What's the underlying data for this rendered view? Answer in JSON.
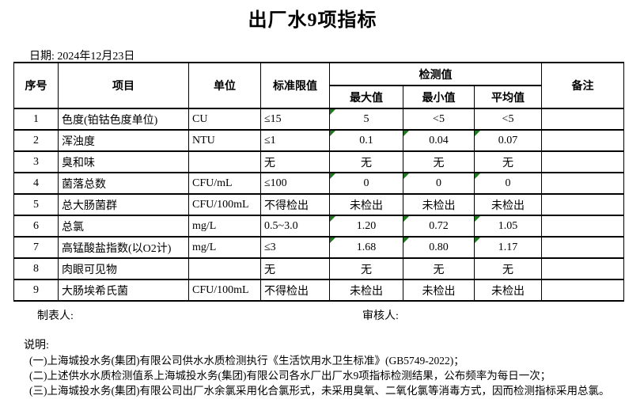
{
  "title": "出厂水9项指标",
  "date_label": "日期: 2024年12月23日",
  "table": {
    "headers": {
      "no": "序号",
      "item": "项目",
      "unit": "单位",
      "limit": "标准限值",
      "detection": "检测值",
      "max": "最大值",
      "min": "最小值",
      "avg": "平均值",
      "remark": "备注"
    },
    "rows": [
      {
        "no": "1",
        "item": "色度(铂钴色度单位)",
        "unit": "CU",
        "limit": "≤15",
        "max": "5",
        "min": "<5",
        "avg": "<5",
        "remark": "",
        "flagged": [
          "max"
        ]
      },
      {
        "no": "2",
        "item": "浑浊度",
        "unit": "NTU",
        "limit": "≤1",
        "max": "0.1",
        "min": "0.04",
        "avg": "0.07",
        "remark": "",
        "flagged": [
          "max",
          "min",
          "avg"
        ]
      },
      {
        "no": "3",
        "item": "臭和味",
        "unit": "",
        "limit": "无",
        "max": "无",
        "min": "无",
        "avg": "无",
        "remark": "",
        "flagged": []
      },
      {
        "no": "4",
        "item": "菌落总数",
        "unit": "CFU/mL",
        "limit": "≤100",
        "max": "0",
        "min": "0",
        "avg": "0",
        "remark": "",
        "flagged": [
          "max",
          "min",
          "avg"
        ]
      },
      {
        "no": "5",
        "item": "总大肠菌群",
        "unit": "CFU/100mL",
        "limit": "不得检出",
        "max": "未检出",
        "min": "未检出",
        "avg": "未检出",
        "remark": "",
        "flagged": []
      },
      {
        "no": "6",
        "item": "总氯",
        "unit": "mg/L",
        "limit": "0.5~3.0",
        "max": "1.20",
        "min": "0.72",
        "avg": "1.05",
        "remark": "",
        "flagged": [
          "max",
          "min",
          "avg"
        ]
      },
      {
        "no": "7",
        "item": "高锰酸盐指数(以O2计)",
        "unit": "mg/L",
        "limit": "≤3",
        "max": "1.68",
        "min": "0.80",
        "avg": "1.17",
        "remark": "",
        "flagged": [
          "max",
          "min",
          "avg"
        ]
      },
      {
        "no": "8",
        "item": "肉眼可见物",
        "unit": "",
        "limit": "无",
        "max": "无",
        "min": "无",
        "avg": "无",
        "remark": "",
        "flagged": []
      },
      {
        "no": "9",
        "item": "大肠埃希氏菌",
        "unit": "CFU/100mL",
        "limit": "不得检出",
        "max": "未检出",
        "min": "未检出",
        "avg": "未检出",
        "remark": "",
        "flagged": []
      }
    ]
  },
  "footer": {
    "preparer_label": "制表人:",
    "reviewer_label": "审核人:"
  },
  "notes": {
    "label": "说明:",
    "lines": [
      "(一)上海城投水务(集团)有限公司供水水质检测执行《生活饮用水卫生标准》(GB5749-2022)；",
      "(二)上述供水水质检测值系上海城投水务(集团)有限公司各水厂出厂水9项指标检测结果，公布频率为每日一次；",
      "(三)上海城投水务(集团)有限公司出厂水余氯采用化合氯形式，未采用臭氧、二氧化氯等消毒方式，因而检测指标采用总氯。"
    ]
  },
  "colors": {
    "flag_green": "#1f7a1f",
    "border": "#000000",
    "background": "#ffffff"
  }
}
